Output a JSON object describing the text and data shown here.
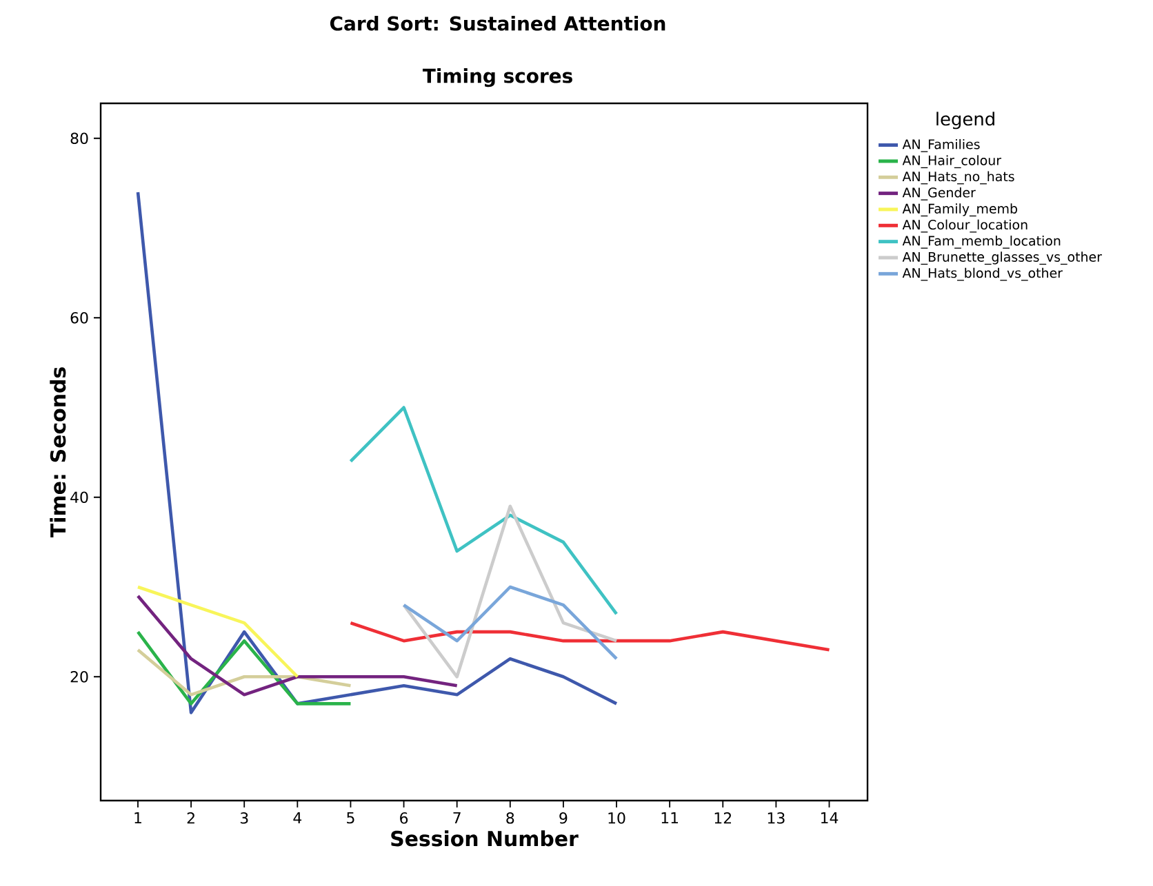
{
  "chart_data": {
    "type": "line",
    "title": "Card Sort: Sustained Attention",
    "subtitle": "Timing scores",
    "xlabel": "Session Number",
    "ylabel": "Time: Seconds",
    "legend_title": "legend",
    "legend": "right",
    "marker": "none",
    "line_style": "solid",
    "xlim": [
      0.3,
      14.72
    ],
    "xticks": [
      1,
      2,
      3,
      4,
      5,
      6,
      7,
      8,
      9,
      10,
      11,
      12,
      13,
      14
    ],
    "ylim": [
      6.2,
      83.9
    ],
    "yticks": [
      20,
      40,
      60,
      80
    ],
    "series": [
      {
        "name": "AN_Families",
        "color": "#3e58ac",
        "x": [
          1,
          2,
          3,
          4,
          5,
          6,
          7,
          8,
          9,
          10
        ],
        "values": [
          74,
          16,
          25,
          17,
          18,
          19,
          18,
          22,
          20,
          17
        ]
      },
      {
        "name": "AN_Hair_colour",
        "color": "#2ab34a",
        "x": [
          1,
          2,
          3,
          4,
          5
        ],
        "values": [
          25,
          17,
          24,
          17,
          17
        ]
      },
      {
        "name": "AN_Hats_no_hats",
        "color": "#d4ce9a",
        "x": [
          1,
          2,
          3,
          4,
          5
        ],
        "values": [
          23,
          18,
          20,
          20,
          19
        ]
      },
      {
        "name": "AN_Gender",
        "color": "#73237f",
        "x": [
          1,
          2,
          3,
          4,
          5,
          6,
          7
        ],
        "values": [
          29,
          22,
          18,
          20,
          20,
          20,
          19
        ]
      },
      {
        "name": "AN_Family_memb",
        "color": "#f8f55a",
        "x": [
          1,
          2,
          3,
          4
        ],
        "values": [
          30,
          28,
          26,
          20
        ]
      },
      {
        "name": "AN_Colour_location",
        "color": "#ef2f36",
        "x": [
          5,
          6,
          7,
          8,
          9,
          10,
          11,
          12,
          13,
          14
        ],
        "values": [
          26,
          24,
          25,
          25,
          24,
          24,
          24,
          25,
          24,
          23
        ]
      },
      {
        "name": "AN_Fam_memb_location",
        "color": "#3fc2c3",
        "x": [
          5,
          6,
          7,
          8,
          9,
          10
        ],
        "values": [
          44,
          50,
          34,
          38,
          35,
          27
        ]
      },
      {
        "name": "AN_Brunette_glasses_vs_other",
        "color": "#cccccc",
        "x": [
          6,
          7,
          8,
          9,
          10
        ],
        "values": [
          28,
          20,
          39,
          26,
          24
        ]
      },
      {
        "name": "AN_Hats_blond_vs_other",
        "color": "#79a6da",
        "x": [
          6,
          7,
          8,
          9,
          10
        ],
        "values": [
          28,
          24,
          30,
          28,
          22
        ]
      }
    ]
  }
}
